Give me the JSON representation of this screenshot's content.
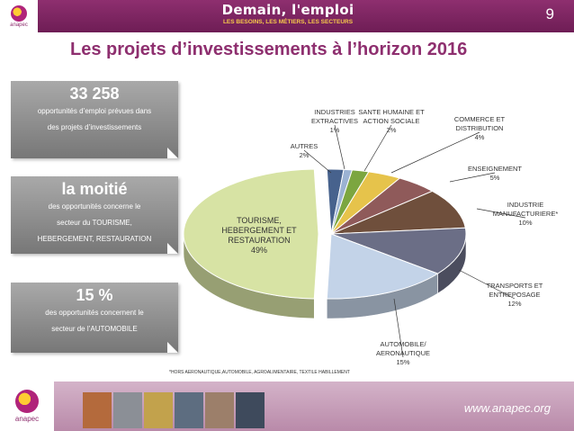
{
  "header": {
    "logo_text": "anapec",
    "title": "Demain, l'emploi",
    "subtitle": "LES BESOINS, LES MÉTIERS, LES SECTEURS",
    "page_number": "9"
  },
  "page_title": "Les projets d’investissements à l’horizon 2016",
  "cards": [
    {
      "big": "33 258",
      "lines": [
        "opportunités d’emploi prévues dans",
        "des projets d’investissements"
      ]
    },
    {
      "big": "la moitié",
      "lines": [
        "des opportunités concerne le",
        "secteur du TOURISME,",
        "HEBERGEMENT, RESTAURATION"
      ]
    },
    {
      "big": "15 %",
      "lines": [
        "des opportunités concernent le",
        "secteur de l’AUTOMOBILE"
      ]
    }
  ],
  "chart_data": {
    "type": "pie",
    "title": "",
    "slices": [
      {
        "label": [
          "TOURISME,",
          "HEBERGEMENT ET",
          "RESTAURATION"
        ],
        "percent_text": "49%",
        "value": 49,
        "color": "#d7e3a4"
      },
      {
        "label": [
          "AUTRES"
        ],
        "percent_text": "2%",
        "value": 2,
        "color": "#47628d"
      },
      {
        "label": [
          "INDUSTRIES",
          "EXTRACTIVES"
        ],
        "percent_text": "1%",
        "value": 1,
        "color": "#9bb2d3"
      },
      {
        "label": [
          "SANTE HUMAINE ET",
          "ACTION SOCIALE"
        ],
        "percent_text": "2%",
        "value": 2,
        "color": "#7ca640"
      },
      {
        "label": [
          "COMMERCE ET",
          "DISTRIBUTION"
        ],
        "percent_text": "4%",
        "value": 4,
        "color": "#e6c34b"
      },
      {
        "label": [
          "ENSEIGNEMENT"
        ],
        "percent_text": "5%",
        "value": 5,
        "color": "#8f5a5a"
      },
      {
        "label": [
          "INDUSTRIE",
          "MANUFACTURIERE*"
        ],
        "percent_text": "10%",
        "value": 10,
        "color": "#6f4f3c"
      },
      {
        "label": [
          "TRANSPORTS ET",
          "ENTREPOSAGE"
        ],
        "percent_text": "12%",
        "value": 12,
        "color": "#6b6e86"
      },
      {
        "label": [
          "AUTOMOBILE/",
          "AERONAUTIQUE"
        ],
        "percent_text": "15%",
        "value": 15,
        "color": "#c3d3e8"
      }
    ]
  },
  "footnote": "*HORS AERONAUTIQUE,AUTOMOBILE, AGROALIMENTAIRE, TEXTILE HABILLEMENT",
  "footer": {
    "logo_text": "anapec",
    "website": "www.anapec.org",
    "photo_colors": [
      "#b46a3c",
      "#8b8f96",
      "#c2a24c",
      "#5d6d80",
      "#9c7f6a",
      "#3e4a5c"
    ]
  }
}
